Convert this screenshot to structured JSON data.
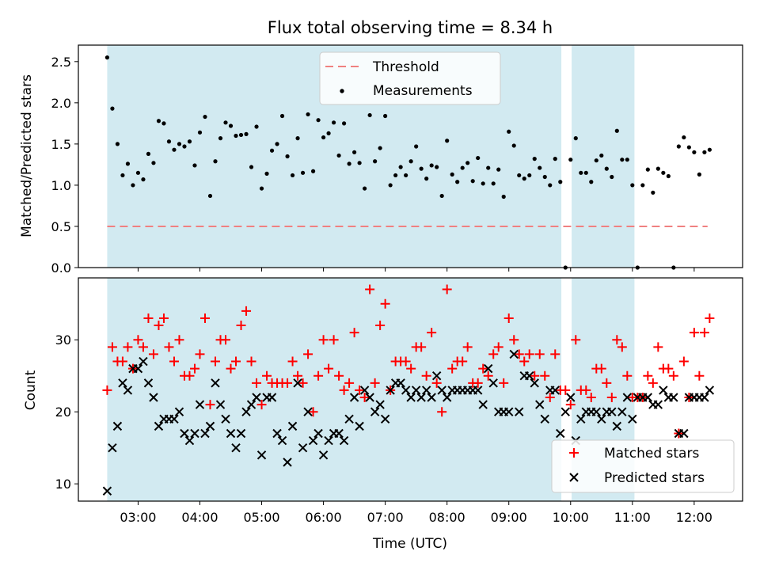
{
  "chart_data": [
    {
      "type": "scatter",
      "title": "Flux total observing time = 8.34 h",
      "xlabel": "",
      "ylabel": "Matched/Predicted stars",
      "ylim": [
        0,
        2.7
      ],
      "yticks": [
        "0.0",
        "0.5",
        "1.0",
        "1.5",
        "2.0",
        "2.5"
      ],
      "xlim": [
        "02:02",
        "12:47"
      ],
      "x_is_time_utc": true,
      "grid": false,
      "legend_position": "top-center",
      "observing_windows": [
        [
          "02:30",
          "09:51"
        ],
        [
          "10:01",
          "11:02"
        ]
      ],
      "observing_window_color": "#add8e6",
      "threshold": {
        "name": "Threshold",
        "y": 0.5,
        "x_range": [
          "02:30",
          "12:13"
        ],
        "color": "#f08080",
        "style": "dashed"
      },
      "series": [
        {
          "name": "Measurements",
          "color": "#000000",
          "marker": "dot",
          "points": [
            [
              "02:30",
              2.55
            ],
            [
              "02:35",
              1.93
            ],
            [
              "02:40",
              1.5
            ],
            [
              "02:45",
              1.12
            ],
            [
              "02:50",
              1.26
            ],
            [
              "02:55",
              1.0
            ],
            [
              "03:00",
              1.15
            ],
            [
              "03:05",
              1.07
            ],
            [
              "03:10",
              1.38
            ],
            [
              "03:15",
              1.27
            ],
            [
              "03:20",
              1.78
            ],
            [
              "03:25",
              1.75
            ],
            [
              "03:30",
              1.53
            ],
            [
              "03:35",
              1.43
            ],
            [
              "03:40",
              1.5
            ],
            [
              "03:45",
              1.47
            ],
            [
              "03:50",
              1.53
            ],
            [
              "03:55",
              1.24
            ],
            [
              "04:00",
              1.64
            ],
            [
              "04:05",
              1.83
            ],
            [
              "04:10",
              0.87
            ],
            [
              "04:15",
              1.29
            ],
            [
              "04:20",
              1.57
            ],
            [
              "04:25",
              1.76
            ],
            [
              "04:30",
              1.72
            ],
            [
              "04:35",
              1.6
            ],
            [
              "04:40",
              1.61
            ],
            [
              "04:45",
              1.62
            ],
            [
              "04:50",
              1.22
            ],
            [
              "04:55",
              1.71
            ],
            [
              "05:00",
              0.96
            ],
            [
              "05:05",
              1.14
            ],
            [
              "05:10",
              1.42
            ],
            [
              "05:15",
              1.5
            ],
            [
              "05:20",
              1.84
            ],
            [
              "05:25",
              1.35
            ],
            [
              "05:30",
              1.12
            ],
            [
              "05:35",
              1.57
            ],
            [
              "05:40",
              1.15
            ],
            [
              "05:45",
              1.86
            ],
            [
              "05:50",
              1.17
            ],
            [
              "05:55",
              1.79
            ],
            [
              "06:00",
              1.58
            ],
            [
              "06:05",
              1.63
            ],
            [
              "06:10",
              1.76
            ],
            [
              "06:15",
              1.36
            ],
            [
              "06:20",
              1.75
            ],
            [
              "06:25",
              1.26
            ],
            [
              "06:30",
              1.4
            ],
            [
              "06:35",
              1.27
            ],
            [
              "06:40",
              0.96
            ],
            [
              "06:45",
              1.85
            ],
            [
              "06:50",
              1.29
            ],
            [
              "06:55",
              1.45
            ],
            [
              "07:00",
              1.84
            ],
            [
              "07:05",
              1.0
            ],
            [
              "07:10",
              1.12
            ],
            [
              "07:15",
              1.22
            ],
            [
              "07:20",
              1.12
            ],
            [
              "07:25",
              1.29
            ],
            [
              "07:30",
              1.47
            ],
            [
              "07:35",
              1.2
            ],
            [
              "07:40",
              1.08
            ],
            [
              "07:45",
              1.24
            ],
            [
              "07:50",
              1.22
            ],
            [
              "07:55",
              0.87
            ],
            [
              "08:00",
              1.54
            ],
            [
              "08:05",
              1.13
            ],
            [
              "08:10",
              1.04
            ],
            [
              "08:15",
              1.21
            ],
            [
              "08:20",
              1.27
            ],
            [
              "08:25",
              1.05
            ],
            [
              "08:30",
              1.33
            ],
            [
              "08:35",
              1.02
            ],
            [
              "08:40",
              1.21
            ],
            [
              "08:45",
              1.02
            ],
            [
              "08:50",
              1.19
            ],
            [
              "08:55",
              0.86
            ],
            [
              "09:00",
              1.65
            ],
            [
              "09:05",
              1.48
            ],
            [
              "09:10",
              1.12
            ],
            [
              "09:15",
              1.08
            ],
            [
              "09:20",
              1.12
            ],
            [
              "09:25",
              1.32
            ],
            [
              "09:30",
              1.21
            ],
            [
              "09:35",
              1.1
            ],
            [
              "09:40",
              1.0
            ],
            [
              "09:45",
              1.32
            ],
            [
              "09:50",
              1.04
            ],
            [
              "09:55",
              0.0
            ],
            [
              "10:00",
              1.31
            ],
            [
              "10:05",
              1.57
            ],
            [
              "10:10",
              1.15
            ],
            [
              "10:15",
              1.15
            ],
            [
              "10:20",
              1.04
            ],
            [
              "10:25",
              1.3
            ],
            [
              "10:30",
              1.36
            ],
            [
              "10:35",
              1.2
            ],
            [
              "10:40",
              1.1
            ],
            [
              "10:45",
              1.66
            ],
            [
              "10:50",
              1.31
            ],
            [
              "10:55",
              1.31
            ],
            [
              "11:00",
              1.0
            ],
            [
              "11:05",
              0.0
            ],
            [
              "11:10",
              1.0
            ],
            [
              "11:15",
              1.19
            ],
            [
              "11:20",
              0.91
            ],
            [
              "11:25",
              1.2
            ],
            [
              "11:30",
              1.15
            ],
            [
              "11:35",
              1.11
            ],
            [
              "11:40",
              0.0
            ],
            [
              "11:45",
              1.47
            ],
            [
              "11:50",
              1.58
            ],
            [
              "11:55",
              1.46
            ],
            [
              "12:00",
              1.4
            ],
            [
              "12:05",
              1.13
            ],
            [
              "12:10",
              1.4
            ],
            [
              "12:15",
              1.43
            ]
          ]
        }
      ]
    },
    {
      "type": "scatter",
      "title": "",
      "xlabel": "Time (UTC)",
      "ylabel": "Count",
      "ylim": [
        7.6,
        38.6
      ],
      "yticks": [
        "10",
        "20",
        "30"
      ],
      "xlim": [
        "02:02",
        "12:47"
      ],
      "xticks": [
        "03:00",
        "04:00",
        "05:00",
        "06:00",
        "07:00",
        "08:00",
        "09:00",
        "10:00",
        "11:00",
        "12:00"
      ],
      "x_is_time_utc": true,
      "grid": false,
      "legend_position": "bottom-right",
      "observing_windows": [
        [
          "02:30",
          "09:51"
        ],
        [
          "10:01",
          "11:02"
        ]
      ],
      "observing_window_color": "#add8e6",
      "series": [
        {
          "name": "Matched stars",
          "color": "#ff0000",
          "marker": "plus",
          "values": [
            23,
            29,
            27,
            27,
            29,
            26,
            30,
            29,
            33,
            28,
            32,
            33,
            29,
            27,
            30,
            25,
            25,
            26,
            28,
            33,
            21,
            27,
            30,
            30,
            26,
            27,
            32,
            34,
            27,
            24,
            21,
            25,
            24,
            24,
            24,
            24,
            27,
            25,
            24,
            28,
            20,
            25,
            30,
            26,
            30,
            25,
            23,
            24,
            31,
            23,
            22,
            37,
            24,
            32,
            35,
            23,
            27,
            27,
            27,
            26,
            29,
            29,
            25,
            31,
            24,
            20,
            37,
            26,
            27,
            27,
            29,
            24,
            24,
            26,
            25,
            28,
            29,
            24,
            33,
            30,
            28,
            27,
            28,
            25,
            28,
            25,
            22,
            28,
            23,
            23,
            21,
            30,
            23,
            23,
            22,
            26,
            26,
            24,
            22,
            30,
            29,
            25,
            22,
            22,
            22,
            25,
            24,
            29,
            26,
            26,
            25,
            17,
            27,
            22,
            31,
            25,
            31,
            33
          ]
        },
        {
          "name": "Predicted stars",
          "color": "#000000",
          "marker": "x",
          "values": [
            9,
            15,
            18,
            24,
            23,
            26,
            26,
            27,
            24,
            22,
            18,
            19,
            19,
            19,
            20,
            17,
            16,
            17,
            21,
            17,
            18,
            24,
            21,
            19,
            17,
            15,
            17,
            20,
            21,
            22,
            14,
            22,
            22,
            17,
            16,
            13,
            18,
            24,
            15,
            20,
            16,
            17,
            14,
            16,
            17,
            17,
            16,
            19,
            22,
            18,
            23,
            22,
            20,
            21,
            19,
            23,
            24,
            24,
            23,
            22,
            23,
            22,
            23,
            22,
            25,
            23,
            22,
            23,
            23,
            23,
            23,
            23,
            23,
            21,
            26,
            24,
            20,
            20,
            20,
            28,
            20,
            25,
            25,
            24,
            21,
            19,
            23,
            23,
            17,
            20,
            22,
            16,
            19,
            20,
            20,
            20,
            19,
            20,
            20,
            18,
            20,
            22,
            19,
            22,
            22,
            22,
            21,
            21,
            23,
            22,
            22,
            17,
            17,
            22,
            22,
            22,
            22,
            23
          ]
        }
      ]
    }
  ]
}
